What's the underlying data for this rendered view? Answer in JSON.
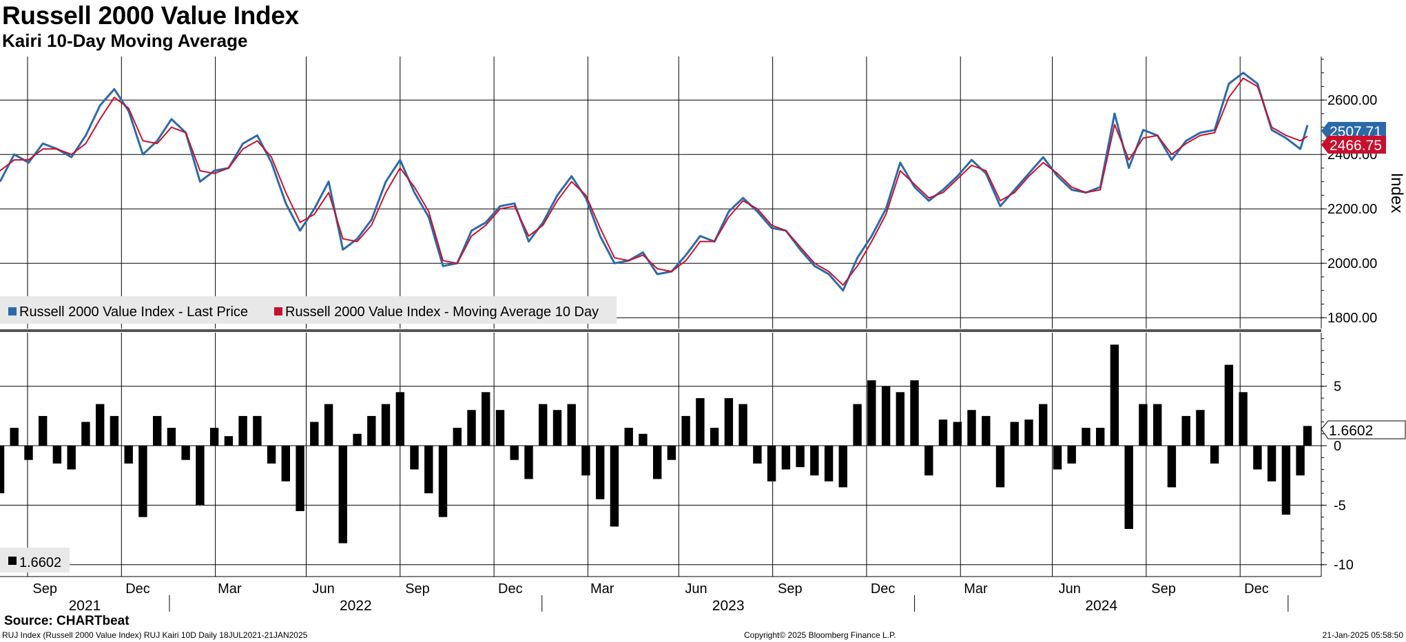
{
  "header": {
    "title": "Russell 2000 Value Index",
    "subtitle": "Kairi 10-Day Moving Average"
  },
  "footer": {
    "source": "Source: CHARTbeat",
    "left": "RUJ Index (Russell 2000 Value Index) RUJ Kairi 10D  Daily 18JUL2021-21JAN2025",
    "center": "Copyright© 2025 Bloomberg Finance L.P.",
    "right": "21-Jan-2025 05:58:50"
  },
  "colors": {
    "price": "#2b6aa8",
    "moving_average": "#c8102e",
    "kairi_bars": "#000000",
    "legend_background": "#e8e8e8"
  },
  "chart_data": [
    {
      "type": "line",
      "ylabel": "Index",
      "ylim": [
        1760,
        2760
      ],
      "yticks": [
        "2600.00",
        "2400.00",
        "2200.00",
        "2000.00",
        "1800.00"
      ],
      "grid": true,
      "legend_position": "bottom-left",
      "legend": [
        {
          "label": "Russell 2000 Value Index - Last Price",
          "color": "#2b6aa8"
        },
        {
          "label": "Russell 2000 Value Index - Moving Average 10 Day",
          "color": "#c8102e"
        }
      ],
      "last_value_tags": [
        {
          "value": "2507.71",
          "color": "#2b6aa8"
        },
        {
          "value": "2466.75",
          "color": "#c8102e"
        }
      ],
      "x": [
        "2021-07-19",
        "2021-08-02",
        "2021-08-16",
        "2021-08-30",
        "2021-09-13",
        "2021-09-27",
        "2021-10-11",
        "2021-10-25",
        "2021-11-08",
        "2021-11-22",
        "2021-12-06",
        "2021-12-20",
        "2022-01-03",
        "2022-01-17",
        "2022-01-31",
        "2022-02-14",
        "2022-02-28",
        "2022-03-14",
        "2022-03-28",
        "2022-04-11",
        "2022-04-25",
        "2022-05-09",
        "2022-05-23",
        "2022-06-06",
        "2022-06-20",
        "2022-07-04",
        "2022-07-18",
        "2022-08-01",
        "2022-08-15",
        "2022-08-29",
        "2022-09-12",
        "2022-09-26",
        "2022-10-10",
        "2022-10-24",
        "2022-11-07",
        "2022-11-21",
        "2022-12-05",
        "2022-12-19",
        "2023-01-02",
        "2023-01-16",
        "2023-01-30",
        "2023-02-13",
        "2023-02-27",
        "2023-03-13",
        "2023-03-27",
        "2023-04-10",
        "2023-04-24",
        "2023-05-08",
        "2023-05-22",
        "2023-06-05",
        "2023-06-19",
        "2023-07-03",
        "2023-07-17",
        "2023-07-31",
        "2023-08-14",
        "2023-08-28",
        "2023-09-11",
        "2023-09-25",
        "2023-10-09",
        "2023-10-23",
        "2023-11-06",
        "2023-11-20",
        "2023-12-04",
        "2023-12-18",
        "2024-01-01",
        "2024-01-15",
        "2024-01-29",
        "2024-02-12",
        "2024-02-26",
        "2024-03-11",
        "2024-03-25",
        "2024-04-08",
        "2024-04-22",
        "2024-05-06",
        "2024-05-20",
        "2024-06-03",
        "2024-06-17",
        "2024-07-01",
        "2024-07-15",
        "2024-07-29",
        "2024-08-12",
        "2024-08-26",
        "2024-09-09",
        "2024-09-23",
        "2024-10-07",
        "2024-10-21",
        "2024-11-04",
        "2024-11-18",
        "2024-12-02",
        "2024-12-16",
        "2024-12-30",
        "2025-01-13",
        "2025-01-20"
      ],
      "series": [
        {
          "name": "Russell 2000 Value Index - Last Price",
          "values": [
            2300,
            2400,
            2370,
            2440,
            2420,
            2390,
            2470,
            2580,
            2640,
            2560,
            2400,
            2450,
            2530,
            2480,
            2300,
            2340,
            2350,
            2440,
            2470,
            2370,
            2220,
            2120,
            2200,
            2300,
            2050,
            2090,
            2160,
            2300,
            2380,
            2260,
            2170,
            1990,
            2000,
            2120,
            2150,
            2210,
            2220,
            2080,
            2150,
            2250,
            2320,
            2240,
            2100,
            2000,
            2010,
            2040,
            1960,
            1970,
            2030,
            2100,
            2080,
            2190,
            2240,
            2190,
            2130,
            2120,
            2050,
            1990,
            1960,
            1900,
            2020,
            2100,
            2200,
            2370,
            2280,
            2230,
            2270,
            2320,
            2380,
            2330,
            2210,
            2270,
            2330,
            2390,
            2320,
            2270,
            2260,
            2280,
            2550,
            2350,
            2490,
            2470,
            2380,
            2450,
            2480,
            2490,
            2660,
            2700,
            2660,
            2490,
            2460,
            2420,
            2507.71
          ]
        },
        {
          "name": "Russell 2000 Value Index - Moving Average 10 Day",
          "values": [
            2340,
            2380,
            2380,
            2420,
            2420,
            2400,
            2440,
            2530,
            2610,
            2570,
            2450,
            2440,
            2500,
            2480,
            2340,
            2330,
            2350,
            2420,
            2450,
            2390,
            2260,
            2150,
            2180,
            2260,
            2090,
            2080,
            2140,
            2260,
            2350,
            2280,
            2190,
            2010,
            2000,
            2100,
            2140,
            2200,
            2210,
            2100,
            2140,
            2230,
            2300,
            2250,
            2130,
            2020,
            2010,
            2030,
            1980,
            1970,
            2010,
            2080,
            2080,
            2170,
            2230,
            2200,
            2140,
            2120,
            2060,
            2000,
            1970,
            1920,
            1990,
            2080,
            2180,
            2340,
            2290,
            2240,
            2260,
            2310,
            2360,
            2340,
            2230,
            2260,
            2320,
            2370,
            2330,
            2280,
            2260,
            2270,
            2510,
            2380,
            2460,
            2470,
            2400,
            2440,
            2470,
            2480,
            2610,
            2680,
            2650,
            2500,
            2470,
            2450,
            2466.75
          ]
        }
      ]
    },
    {
      "type": "bar",
      "ylim": [
        -11,
        9.5
      ],
      "yticks": [
        5,
        0,
        -5,
        -10
      ],
      "grid": true,
      "legend_position": "bottom-left",
      "legend": [
        {
          "label": "1.6602",
          "color": "#000000"
        }
      ],
      "last_value_tags": [
        {
          "value": "1.6602",
          "color": "#000000"
        }
      ],
      "x": [
        "2021-07-19",
        "2021-08-02",
        "2021-08-16",
        "2021-08-30",
        "2021-09-13",
        "2021-09-27",
        "2021-10-11",
        "2021-10-25",
        "2021-11-08",
        "2021-11-22",
        "2021-12-06",
        "2021-12-20",
        "2022-01-03",
        "2022-01-17",
        "2022-01-31",
        "2022-02-14",
        "2022-02-28",
        "2022-03-14",
        "2022-03-28",
        "2022-04-11",
        "2022-04-25",
        "2022-05-09",
        "2022-05-23",
        "2022-06-06",
        "2022-06-20",
        "2022-07-04",
        "2022-07-18",
        "2022-08-01",
        "2022-08-15",
        "2022-08-29",
        "2022-09-12",
        "2022-09-26",
        "2022-10-10",
        "2022-10-24",
        "2022-11-07",
        "2022-11-21",
        "2022-12-05",
        "2022-12-19",
        "2023-01-02",
        "2023-01-16",
        "2023-01-30",
        "2023-02-13",
        "2023-02-27",
        "2023-03-13",
        "2023-03-27",
        "2023-04-10",
        "2023-04-24",
        "2023-05-08",
        "2023-05-22",
        "2023-06-05",
        "2023-06-19",
        "2023-07-03",
        "2023-07-17",
        "2023-07-31",
        "2023-08-14",
        "2023-08-28",
        "2023-09-11",
        "2023-09-25",
        "2023-10-09",
        "2023-10-23",
        "2023-11-06",
        "2023-11-20",
        "2023-12-04",
        "2023-12-18",
        "2024-01-01",
        "2024-01-15",
        "2024-01-29",
        "2024-02-12",
        "2024-02-26",
        "2024-03-11",
        "2024-03-25",
        "2024-04-08",
        "2024-04-22",
        "2024-05-06",
        "2024-05-20",
        "2024-06-03",
        "2024-06-17",
        "2024-07-01",
        "2024-07-15",
        "2024-07-29",
        "2024-08-12",
        "2024-08-26",
        "2024-09-09",
        "2024-09-23",
        "2024-10-07",
        "2024-10-21",
        "2024-11-04",
        "2024-11-18",
        "2024-12-02",
        "2024-12-16",
        "2024-12-30",
        "2025-01-13",
        "2025-01-20"
      ],
      "series": [
        {
          "name": "",
          "values": [
            -4,
            1.5,
            -1.2,
            2.5,
            -1.5,
            -2,
            2,
            3.5,
            2.5,
            -1.5,
            -6,
            2.5,
            1.5,
            -1.2,
            -5,
            1.5,
            0.8,
            2.5,
            2.5,
            -1.5,
            -3,
            -5.5,
            2,
            3.5,
            -8.2,
            1,
            2.5,
            3.5,
            4.5,
            -2,
            -4,
            -6,
            1.5,
            3,
            4.5,
            3,
            -1.2,
            -2.8,
            3.5,
            3,
            3.5,
            -2.5,
            -4.5,
            -6.8,
            1.5,
            1,
            -2.8,
            -1.2,
            2.5,
            4,
            1.5,
            4,
            3.5,
            -1.5,
            -3,
            -2,
            -1.8,
            -2.5,
            -3,
            -3.5,
            3.5,
            5.5,
            5,
            4.5,
            5.5,
            -2.5,
            2.2,
            2,
            3,
            2.5,
            -3.5,
            2,
            2.2,
            3.5,
            -2,
            -1.5,
            1.5,
            1.5,
            8.5,
            -7,
            3.5,
            3.5,
            -3.5,
            2.5,
            3,
            -1.5,
            6.8,
            4.5,
            -2,
            -3,
            -5.8,
            -2.5,
            1.6602
          ]
        }
      ]
    }
  ],
  "time_axis": {
    "months": [
      "Sep",
      "Dec",
      "Mar",
      "Jun",
      "Sep",
      "Dec",
      "Mar",
      "Jun",
      "Sep",
      "Dec",
      "Mar",
      "Jun",
      "Sep",
      "Dec"
    ],
    "years": [
      "2021",
      "2022",
      "2023",
      "2024"
    ]
  }
}
